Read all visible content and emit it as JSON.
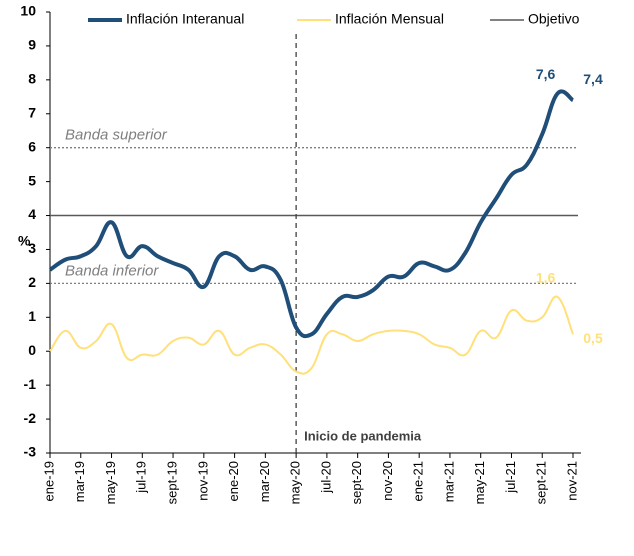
{
  "chart_data": {
    "type": "line",
    "categories": [
      "ene-19",
      null,
      "mar-19",
      null,
      "may-19",
      null,
      "jul-19",
      null,
      "sept-19",
      null,
      "nov-19",
      null,
      "ene-20",
      null,
      "mar-20",
      null,
      "may-20",
      null,
      "jul-20",
      null,
      "sept-20",
      null,
      "nov-20",
      null,
      "ene-21",
      null,
      "mar-21",
      null,
      "may-21",
      null,
      "jul-21",
      null,
      "sept-21",
      null,
      "nov-21"
    ],
    "series": [
      {
        "name": "Inflación Interanual",
        "color": "#1f4e79",
        "values": [
          2.4,
          2.7,
          2.8,
          3.1,
          3.8,
          2.8,
          3.1,
          2.8,
          2.6,
          2.4,
          1.9,
          2.8,
          2.8,
          2.4,
          2.5,
          2.1,
          0.7,
          0.5,
          1.1,
          1.6,
          1.6,
          1.8,
          2.2,
          2.2,
          2.6,
          2.5,
          2.4,
          2.9,
          3.8,
          4.5,
          5.2,
          5.5,
          6.4,
          7.6,
          7.4
        ],
        "value_labels": [
          null,
          null,
          null,
          null,
          null,
          null,
          null,
          null,
          null,
          null,
          null,
          null,
          null,
          null,
          null,
          null,
          null,
          null,
          null,
          null,
          null,
          null,
          null,
          null,
          null,
          null,
          null,
          null,
          null,
          null,
          null,
          null,
          null,
          "7,6",
          "7,4"
        ]
      },
      {
        "name": "Inflación Mensual",
        "color": "#ffe07a",
        "values": [
          0.0,
          0.6,
          0.1,
          0.3,
          0.8,
          -0.2,
          -0.1,
          -0.1,
          0.3,
          0.4,
          0.2,
          0.6,
          -0.1,
          0.1,
          0.2,
          -0.1,
          -0.6,
          -0.5,
          0.5,
          0.5,
          0.3,
          0.5,
          0.6,
          0.6,
          0.5,
          0.2,
          0.1,
          -0.1,
          0.6,
          0.4,
          1.2,
          0.9,
          1.0,
          1.6,
          0.5
        ],
        "value_labels": [
          null,
          null,
          null,
          null,
          null,
          null,
          null,
          null,
          null,
          null,
          null,
          null,
          null,
          null,
          null,
          null,
          null,
          null,
          null,
          null,
          null,
          null,
          null,
          null,
          null,
          null,
          null,
          null,
          null,
          null,
          null,
          null,
          null,
          "1,6",
          "0,5"
        ]
      }
    ],
    "reference_lines": [
      {
        "name": "Objetivo",
        "value": 4,
        "color": "#595959"
      },
      {
        "label": "Banda superior",
        "value": 6,
        "color": "#7f7f7f"
      },
      {
        "label": "Banda inferior",
        "value": 2,
        "color": "#7f7f7f"
      }
    ],
    "event": {
      "category": "may-20",
      "label": "Inicio de pandemia"
    },
    "ylabel": "%",
    "ylim": [
      -3,
      10
    ],
    "yticks": [
      -3,
      -2,
      -1,
      0,
      1,
      2,
      3,
      4,
      5,
      6,
      7,
      8,
      9,
      10
    ]
  }
}
